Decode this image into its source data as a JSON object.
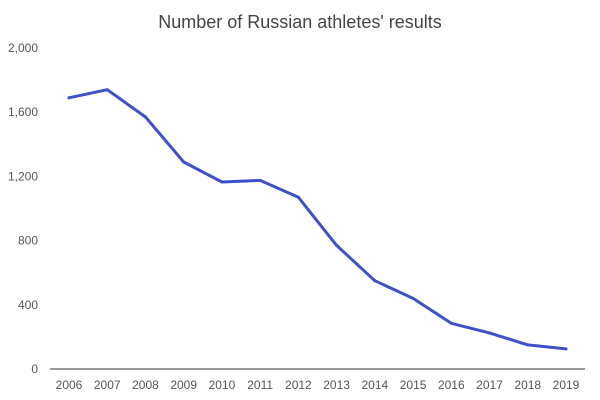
{
  "chart_data": {
    "type": "line",
    "title": "Number of Russian athletes' results",
    "xlabel": "",
    "ylabel": "",
    "categories": [
      "2006",
      "2007",
      "2008",
      "2009",
      "2010",
      "2011",
      "2012",
      "2013",
      "2014",
      "2015",
      "2016",
      "2017",
      "2018",
      "2019"
    ],
    "series": [
      {
        "values": [
          1690,
          1740,
          1570,
          1290,
          1165,
          1175,
          1070,
          770,
          550,
          440,
          285,
          225,
          150,
          125
        ]
      }
    ],
    "ylim": [
      0,
      2000
    ],
    "yticks": [
      0,
      400,
      800,
      1200,
      1600,
      2000
    ],
    "ytick_labels": [
      "0",
      "400",
      "800",
      "1,200",
      "1,600",
      "2,000"
    ],
    "grid": false,
    "legend": "none",
    "colors": {
      "line": "#3F51C8",
      "baseline": "#333333",
      "text": "#555555"
    }
  }
}
